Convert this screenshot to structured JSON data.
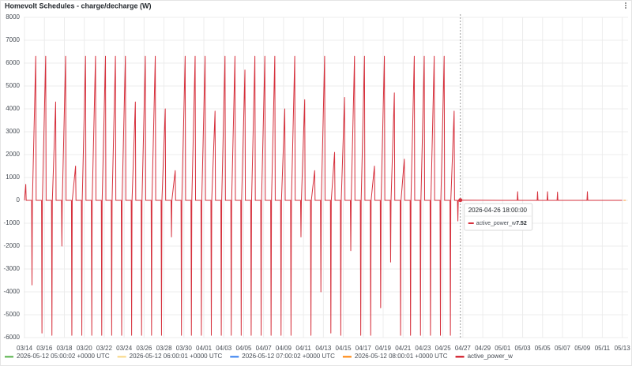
{
  "chart_data": {
    "type": "line",
    "title": "Homevolt Schedules - charge/decharge (W)",
    "xlim": [
      "2026-03-13 22:00",
      "2026-05-13 14:00"
    ],
    "ylim": [
      -6000,
      8000
    ],
    "yticks": [
      -6000,
      -5000,
      -4000,
      -3000,
      -2000,
      -1000,
      0,
      1000,
      2000,
      3000,
      4000,
      5000,
      6000,
      7000,
      8000
    ],
    "xticks": [
      {
        "value": "2026-03-14 00:00",
        "label": "03/14"
      },
      {
        "value": "2026-03-16 00:00",
        "label": "03/16"
      },
      {
        "value": "2026-03-18 00:00",
        "label": "03/18"
      },
      {
        "value": "2026-03-20 00:00",
        "label": "03/20"
      },
      {
        "value": "2026-03-22 00:00",
        "label": "03/22"
      },
      {
        "value": "2026-03-24 00:00",
        "label": "03/24"
      },
      {
        "value": "2026-03-26 00:00",
        "label": "03/26"
      },
      {
        "value": "2026-03-28 00:00",
        "label": "03/28"
      },
      {
        "value": "2026-03-30 00:00",
        "label": "03/30"
      },
      {
        "value": "2026-04-01 00:00",
        "label": "04/01"
      },
      {
        "value": "2026-04-03 00:00",
        "label": "04/03"
      },
      {
        "value": "2026-04-05 00:00",
        "label": "04/05"
      },
      {
        "value": "2026-04-07 00:00",
        "label": "04/07"
      },
      {
        "value": "2026-04-09 00:00",
        "label": "04/09"
      },
      {
        "value": "2026-04-11 00:00",
        "label": "04/11"
      },
      {
        "value": "2026-04-13 00:00",
        "label": "04/13"
      },
      {
        "value": "2026-04-15 00:00",
        "label": "04/15"
      },
      {
        "value": "2026-04-17 00:00",
        "label": "04/17"
      },
      {
        "value": "2026-04-19 00:00",
        "label": "04/19"
      },
      {
        "value": "2026-04-21 00:00",
        "label": "04/21"
      },
      {
        "value": "2026-04-23 00:00",
        "label": "04/23"
      },
      {
        "value": "2026-04-25 00:00",
        "label": "04/25"
      },
      {
        "value": "2026-04-27 00:00",
        "label": "04/27"
      },
      {
        "value": "2026-04-29 00:00",
        "label": "04/29"
      },
      {
        "value": "2026-05-01 00:00",
        "label": "05/01"
      },
      {
        "value": "2026-05-03 00:00",
        "label": "05/03"
      },
      {
        "value": "2026-05-05 00:00",
        "label": "05/05"
      },
      {
        "value": "2026-05-07 00:00",
        "label": "05/07"
      },
      {
        "value": "2026-05-09 00:00",
        "label": "05/09"
      },
      {
        "value": "2026-05-11 00:00",
        "label": "05/11"
      },
      {
        "value": "2026-05-13 00:00",
        "label": "05/13"
      }
    ],
    "grid": true,
    "legend": "bottom",
    "tooltip": {
      "title": "2026-04-26 18:00:00",
      "value": 7.52
    },
    "series": [
      {
        "name": "2026-05-12 05:00:02 +0000 UTC",
        "color": "#73bf69",
        "x": [
          "2026-05-12 05:00",
          "2026-05-12 06:00"
        ],
        "values": [
          0,
          0
        ]
      },
      {
        "name": "2026-05-12 06:00:01 +0000 UTC",
        "color": "#fade9a",
        "x": [
          "2026-05-12 06:00",
          "2026-05-12 07:00"
        ],
        "values": [
          0,
          0
        ]
      },
      {
        "name": "2026-05-12 07:00:02 +0000 UTC",
        "color": "#5794f2",
        "x": [
          "2026-05-12 07:00",
          "2026-05-12 08:00"
        ],
        "values": [
          0,
          0
        ]
      },
      {
        "name": "2026-05-12 08:00:01 +0000 UTC",
        "color": "#ff9830",
        "x": [
          "2026-05-12 08:00",
          "2026-05-13 12:00"
        ],
        "values": [
          0,
          0
        ]
      },
      {
        "name": "active_power_w",
        "color": "#d6303c",
        "x": [
          "2026-03-14 00:00",
          "2026-03-14 03:00",
          "2026-03-14 04:00",
          "2026-03-14 17:00",
          "2026-03-14 18:00",
          "2026-03-14 19:00",
          "2026-03-15 03:00",
          "2026-03-15 04:00",
          "2026-03-15 17:00",
          "2026-03-15 18:00",
          "2026-03-15 19:00",
          "2026-03-16 03:00",
          "2026-03-16 04:00",
          "2026-03-16 17:00",
          "2026-03-16 18:00",
          "2026-03-16 19:00",
          "2026-03-17 03:00",
          "2026-03-17 04:00",
          "2026-03-17 17:00",
          "2026-03-17 18:00",
          "2026-03-17 19:00",
          "2026-03-18 03:00",
          "2026-03-18 04:00",
          "2026-03-18 17:00",
          "2026-03-18 18:00",
          "2026-03-18 19:00",
          "2026-03-19 03:00",
          "2026-03-19 04:00",
          "2026-03-19 17:00",
          "2026-03-19 18:00",
          "2026-03-19 19:00",
          "2026-03-20 03:00",
          "2026-03-20 04:00",
          "2026-03-20 17:00",
          "2026-03-20 18:00",
          "2026-03-20 19:00",
          "2026-03-21 03:00",
          "2026-03-21 04:00",
          "2026-03-21 17:00",
          "2026-03-21 18:00",
          "2026-03-21 19:00",
          "2026-03-22 03:00",
          "2026-03-22 04:00",
          "2026-03-22 17:00",
          "2026-03-22 18:00",
          "2026-03-22 19:00",
          "2026-03-23 03:00",
          "2026-03-23 04:00",
          "2026-03-23 17:00",
          "2026-03-23 18:00",
          "2026-03-23 19:00",
          "2026-03-24 03:00",
          "2026-03-24 04:00",
          "2026-03-24 17:00",
          "2026-03-24 18:00",
          "2026-03-24 19:00",
          "2026-03-25 03:00",
          "2026-03-25 04:00",
          "2026-03-25 17:00",
          "2026-03-25 18:00",
          "2026-03-25 19:00",
          "2026-03-26 03:00",
          "2026-03-26 04:00",
          "2026-03-26 17:00",
          "2026-03-26 18:00",
          "2026-03-26 19:00",
          "2026-03-27 03:00",
          "2026-03-27 04:00",
          "2026-03-27 17:00",
          "2026-03-27 18:00",
          "2026-03-27 19:00",
          "2026-03-28 03:00",
          "2026-03-28 04:00",
          "2026-03-28 17:00",
          "2026-03-28 18:00",
          "2026-03-28 19:00",
          "2026-03-29 03:00",
          "2026-03-29 04:00",
          "2026-03-29 17:00",
          "2026-03-29 18:00",
          "2026-03-29 19:00",
          "2026-03-30 03:00",
          "2026-03-30 04:00",
          "2026-03-30 17:00",
          "2026-03-30 18:00",
          "2026-03-30 19:00",
          "2026-03-31 03:00",
          "2026-03-31 04:00",
          "2026-03-31 17:00",
          "2026-03-31 18:00",
          "2026-03-31 19:00",
          "2026-04-01 03:00",
          "2026-04-01 04:00",
          "2026-04-01 17:00",
          "2026-04-01 18:00",
          "2026-04-01 19:00",
          "2026-04-02 03:00",
          "2026-04-02 04:00",
          "2026-04-02 17:00",
          "2026-04-02 18:00",
          "2026-04-02 19:00",
          "2026-04-03 03:00",
          "2026-04-03 04:00",
          "2026-04-03 17:00",
          "2026-04-03 18:00",
          "2026-04-03 19:00",
          "2026-04-04 03:00",
          "2026-04-04 04:00",
          "2026-04-04 17:00",
          "2026-04-04 18:00",
          "2026-04-04 19:00",
          "2026-04-05 03:00",
          "2026-04-05 04:00",
          "2026-04-05 17:00",
          "2026-04-05 18:00",
          "2026-04-05 19:00",
          "2026-04-06 03:00",
          "2026-04-06 04:00",
          "2026-04-06 17:00",
          "2026-04-06 18:00",
          "2026-04-06 19:00",
          "2026-04-07 03:00",
          "2026-04-07 04:00",
          "2026-04-07 17:00",
          "2026-04-07 18:00",
          "2026-04-07 19:00",
          "2026-04-08 03:00",
          "2026-04-08 04:00",
          "2026-04-08 17:00",
          "2026-04-08 18:00",
          "2026-04-08 19:00",
          "2026-04-09 03:00",
          "2026-04-09 04:00",
          "2026-04-09 17:00",
          "2026-04-09 18:00",
          "2026-04-09 19:00",
          "2026-04-10 03:00",
          "2026-04-10 04:00",
          "2026-04-10 17:00",
          "2026-04-10 18:00",
          "2026-04-10 19:00",
          "2026-04-11 03:00",
          "2026-04-11 04:00",
          "2026-04-11 17:00",
          "2026-04-11 18:00",
          "2026-04-11 19:00",
          "2026-04-12 03:00",
          "2026-04-12 04:00",
          "2026-04-12 17:00",
          "2026-04-12 18:00",
          "2026-04-12 19:00",
          "2026-04-13 03:00",
          "2026-04-13 04:00",
          "2026-04-13 17:00",
          "2026-04-13 18:00",
          "2026-04-13 19:00",
          "2026-04-14 03:00",
          "2026-04-14 04:00",
          "2026-04-14 17:00",
          "2026-04-14 18:00",
          "2026-04-14 19:00",
          "2026-04-15 03:00",
          "2026-04-15 04:00",
          "2026-04-15 17:00",
          "2026-04-15 18:00",
          "2026-04-15 19:00",
          "2026-04-16 03:00",
          "2026-04-16 04:00",
          "2026-04-16 17:00",
          "2026-04-16 18:00",
          "2026-04-16 19:00",
          "2026-04-17 03:00",
          "2026-04-17 04:00",
          "2026-04-17 17:00",
          "2026-04-17 18:00",
          "2026-04-17 19:00",
          "2026-04-18 03:00",
          "2026-04-18 04:00",
          "2026-04-18 17:00",
          "2026-04-18 18:00",
          "2026-04-18 19:00",
          "2026-04-19 03:00",
          "2026-04-19 04:00",
          "2026-04-19 17:00",
          "2026-04-19 18:00",
          "2026-04-19 19:00",
          "2026-04-20 03:00",
          "2026-04-20 04:00",
          "2026-04-20 17:00",
          "2026-04-20 18:00",
          "2026-04-20 19:00",
          "2026-04-21 03:00",
          "2026-04-21 04:00",
          "2026-04-21 17:00",
          "2026-04-21 18:00",
          "2026-04-21 19:00",
          "2026-04-22 03:00",
          "2026-04-22 04:00",
          "2026-04-22 17:00",
          "2026-04-22 18:00",
          "2026-04-22 19:00",
          "2026-04-23 03:00",
          "2026-04-23 04:00",
          "2026-04-23 17:00",
          "2026-04-23 18:00",
          "2026-04-23 19:00",
          "2026-04-24 03:00",
          "2026-04-24 04:00",
          "2026-04-24 17:00",
          "2026-04-24 18:00",
          "2026-04-24 19:00",
          "2026-04-25 03:00",
          "2026-04-25 04:00",
          "2026-04-25 17:00",
          "2026-04-25 18:00",
          "2026-04-25 19:00",
          "2026-04-26 03:00",
          "2026-04-26 04:00",
          "2026-04-26 11:00",
          "2026-04-26 12:00",
          "2026-04-26 13:00",
          "2026-04-26 18:00",
          "2026-05-02 11:00",
          "2026-05-02 12:00",
          "2026-05-02 13:00",
          "2026-05-04 11:00",
          "2026-05-04 12:00",
          "2026-05-04 13:00",
          "2026-05-05 11:00",
          "2026-05-05 12:00",
          "2026-05-05 13:00",
          "2026-05-06 11:00",
          "2026-05-06 12:00",
          "2026-05-06 13:00",
          "2026-05-09 11:00",
          "2026-05-09 12:00",
          "2026-05-09 13:00",
          "2026-05-13 00:00"
        ],
        "values": [
          0,
          700,
          0,
          0,
          -3700,
          0,
          6300,
          0,
          0,
          -5800,
          0,
          6300,
          0,
          0,
          -5900,
          0,
          4300,
          0,
          0,
          -2000,
          0,
          6300,
          0,
          0,
          -5900,
          0,
          1500,
          0,
          0,
          -5900,
          0,
          6300,
          0,
          0,
          -5900,
          0,
          6300,
          0,
          0,
          -5900,
          0,
          6300,
          0,
          0,
          -5900,
          0,
          6300,
          0,
          0,
          -5900,
          0,
          6300,
          0,
          0,
          -5900,
          0,
          4300,
          0,
          0,
          -5900,
          0,
          6300,
          0,
          0,
          -5900,
          0,
          6300,
          0,
          0,
          -5900,
          0,
          4000,
          0,
          0,
          -1600,
          0,
          1300,
          0,
          0,
          -5900,
          0,
          6300,
          0,
          0,
          -5900,
          0,
          6300,
          0,
          0,
          -5900,
          0,
          6300,
          0,
          0,
          -5900,
          0,
          3900,
          0,
          0,
          -5900,
          0,
          6300,
          0,
          0,
          -5900,
          0,
          6300,
          0,
          0,
          -5900,
          0,
          5700,
          0,
          0,
          -5900,
          0,
          6300,
          0,
          0,
          -5900,
          0,
          6300,
          0,
          0,
          -5900,
          0,
          6300,
          0,
          0,
          -5900,
          0,
          4000,
          0,
          0,
          -5900,
          0,
          6300,
          0,
          0,
          -1600,
          0,
          4400,
          0,
          0,
          -5900,
          0,
          1300,
          0,
          0,
          -4000,
          0,
          6300,
          0,
          0,
          -5800,
          0,
          2100,
          0,
          0,
          -5900,
          0,
          4500,
          0,
          0,
          -2200,
          0,
          6300,
          0,
          0,
          -5900,
          0,
          6300,
          0,
          0,
          -5900,
          0,
          1500,
          0,
          0,
          -4700,
          0,
          6300,
          0,
          0,
          -2700,
          0,
          4700,
          0,
          0,
          -5900,
          0,
          1800,
          0,
          0,
          -5900,
          0,
          6300,
          0,
          0,
          -5900,
          0,
          6300,
          0,
          0,
          -5900,
          0,
          6300,
          0,
          0,
          -5900,
          0,
          6300,
          0,
          0,
          -5900,
          0,
          3900,
          0,
          0,
          -900,
          0,
          7.52,
          0,
          380,
          0,
          0,
          380,
          0,
          0,
          380,
          0,
          0,
          360,
          0,
          0,
          380,
          0,
          0
        ]
      }
    ]
  }
}
